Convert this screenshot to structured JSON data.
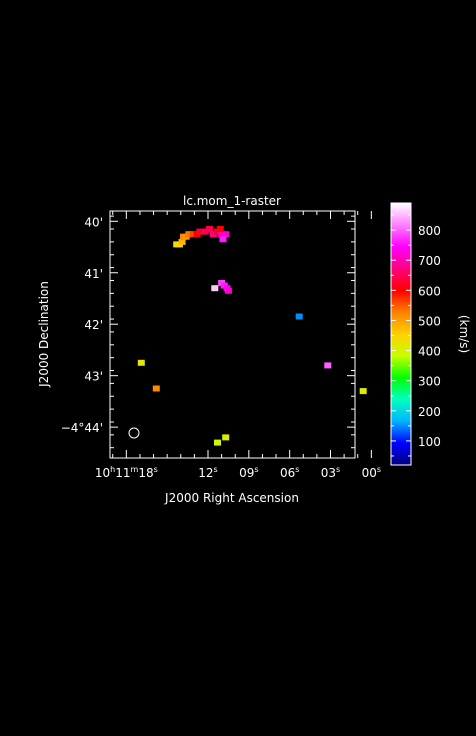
{
  "title": "lc.mom_1-raster",
  "background_color": "#000000",
  "frame_color": "#ffffff",
  "x_axis": {
    "label": "J2000 Right Ascension",
    "ticks": [
      {
        "h": "10",
        "m": "11",
        "s": "18"
      },
      {
        "s": "12"
      },
      {
        "s": "09"
      },
      {
        "s": "06"
      },
      {
        "s": "03"
      },
      {
        "s": "00"
      }
    ]
  },
  "y_axis": {
    "label": "J2000 Declination",
    "ticks": [
      {
        "text": "40'"
      },
      {
        "text": "41'"
      },
      {
        "text": "42'"
      },
      {
        "text": "43'"
      },
      {
        "text": "−4°44'"
      }
    ]
  },
  "colorbar": {
    "label": "(km/s)",
    "ticks": [
      "100",
      "200",
      "300",
      "400",
      "500",
      "600",
      "700",
      "800"
    ],
    "range": [
      20,
      890
    ],
    "colormap": [
      "#000080",
      "#0000ff",
      "#00b4ff",
      "#00ffc0",
      "#00ff00",
      "#c8ff00",
      "#ffd000",
      "#ff8000",
      "#ff0000",
      "#ff0080",
      "#ff00ff",
      "#ff80ff",
      "#ffffff"
    ]
  },
  "beam_icon": "beam-ellipse",
  "chart_data": {
    "type": "heatmap",
    "title": "lc.mom_1-raster",
    "xlabel": "J2000 Right Ascension",
    "ylabel": "J2000 Declination",
    "xlim_sec_ra": [
      19.2,
      1.2
    ],
    "ylim_arcmin_dec": [
      -44.6,
      -39.8
    ],
    "ra_prefix": "10h11m",
    "dec_prefix": "-4d",
    "colorbar_label": "(km/s)",
    "colorbar_range": [
      20,
      890
    ],
    "pixels_note": "RA in seconds of time (10h11m + s), Dec in arcmin of -4 deg (-4d + m'); value = velocity km/s",
    "pixels": [
      {
        "ra": 14.3,
        "dec": -40.45,
        "v": 430
      },
      {
        "ra": 14.1,
        "dec": -40.45,
        "v": 440
      },
      {
        "ra": 13.9,
        "dec": -40.4,
        "v": 480
      },
      {
        "ra": 13.8,
        "dec": -40.3,
        "v": 520
      },
      {
        "ra": 13.6,
        "dec": -40.3,
        "v": 510
      },
      {
        "ra": 13.4,
        "dec": -40.25,
        "v": 530
      },
      {
        "ra": 13.1,
        "dec": -40.25,
        "v": 560
      },
      {
        "ra": 12.8,
        "dec": -40.25,
        "v": 600
      },
      {
        "ra": 12.6,
        "dec": -40.2,
        "v": 620
      },
      {
        "ra": 12.2,
        "dec": -40.2,
        "v": 650
      },
      {
        "ra": 11.9,
        "dec": -40.15,
        "v": 640
      },
      {
        "ra": 11.6,
        "dec": -40.25,
        "v": 680
      },
      {
        "ra": 11.3,
        "dec": -40.2,
        "v": 620
      },
      {
        "ra": 11.0,
        "dec": -40.25,
        "v": 700
      },
      {
        "ra": 10.7,
        "dec": -40.25,
        "v": 720
      },
      {
        "ra": 10.9,
        "dec": -40.35,
        "v": 760
      },
      {
        "ra": 11.1,
        "dec": -40.15,
        "v": 600
      },
      {
        "ra": 11.0,
        "dec": -41.2,
        "v": 780
      },
      {
        "ra": 10.8,
        "dec": -41.25,
        "v": 760
      },
      {
        "ra": 10.6,
        "dec": -41.3,
        "v": 740
      },
      {
        "ra": 10.5,
        "dec": -41.35,
        "v": 720
      },
      {
        "ra": 11.5,
        "dec": -41.3,
        "v": 860
      },
      {
        "ra": 5.3,
        "dec": -41.85,
        "v": 150
      },
      {
        "ra": 3.2,
        "dec": -42.8,
        "v": 800
      },
      {
        "ra": 16.9,
        "dec": -42.75,
        "v": 420
      },
      {
        "ra": 15.8,
        "dec": -43.25,
        "v": 520
      },
      {
        "ra": 0.6,
        "dec": -43.3,
        "v": 410
      },
      {
        "ra": 11.3,
        "dec": -44.3,
        "v": 400
      },
      {
        "ra": 10.7,
        "dec": -44.2,
        "v": 410
      }
    ]
  }
}
